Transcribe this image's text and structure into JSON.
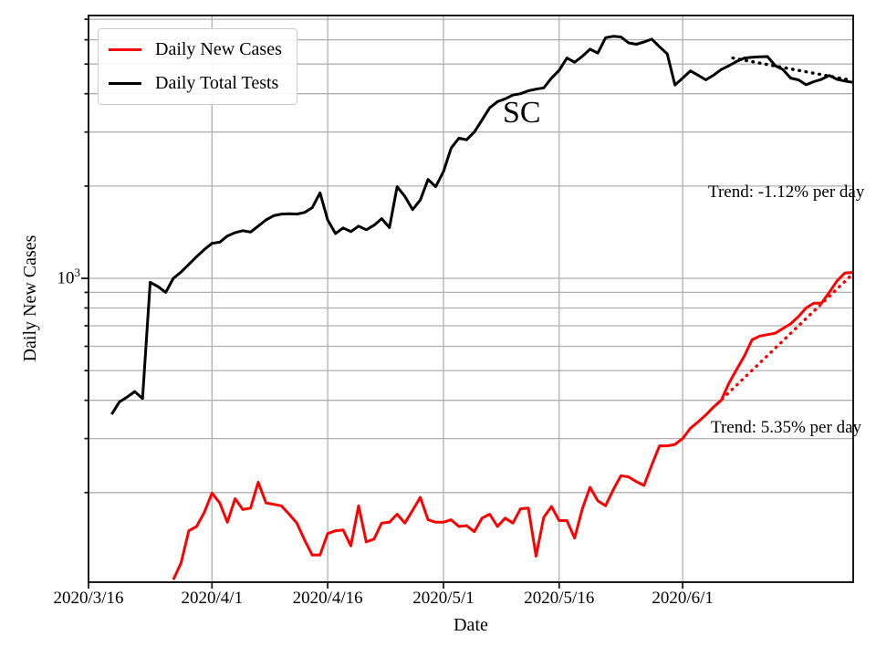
{
  "figure": {
    "window_bg": "#ffffff",
    "grid_color": "#b0b0b0",
    "spine_color": "#1a1a1a"
  },
  "chart_data": {
    "type": "line",
    "title": "SC",
    "state_label": "SC",
    "xlabel": "Date",
    "ylabel": "Daily New Cases",
    "grid": true,
    "legend_position": "upper left",
    "x_axis": {
      "unit": "days since 2020/3/16",
      "range": [
        0,
        99.1
      ],
      "ticks": [
        {
          "day": 0,
          "label": "2020/3/16"
        },
        {
          "day": 16,
          "label": "2020/4/1"
        },
        {
          "day": 31,
          "label": "2020/4/16"
        },
        {
          "day": 46,
          "label": "2020/5/1"
        },
        {
          "day": 61,
          "label": "2020/5/16"
        },
        {
          "day": 77,
          "label": "2020/6/1"
        }
      ]
    },
    "y_axis": {
      "scale": "log",
      "range": [
        102,
        7200
      ],
      "major_tick_value": 1000,
      "major_tick_label_base": "10",
      "major_tick_label_exp": "3",
      "gridline_values": [
        200,
        300,
        400,
        500,
        600,
        700,
        800,
        900,
        1000,
        2000,
        3000,
        4000,
        5000,
        6000,
        7000
      ]
    },
    "trend_labels": {
      "tests": "Trend: -1.12% per day",
      "cases": "Trend: 5.35% per day"
    },
    "series": [
      {
        "name": "Daily New Cases",
        "color": "#ff0000",
        "style": "solid",
        "trend_pct_per_day": 5.35,
        "points": [
          [
            11,
            104
          ],
          [
            12,
            118
          ],
          [
            13,
            150
          ],
          [
            14,
            155
          ],
          [
            15,
            172
          ],
          [
            16,
            199
          ],
          [
            17,
            185
          ],
          [
            18,
            160
          ],
          [
            19,
            191
          ],
          [
            20,
            176
          ],
          [
            21,
            178
          ],
          [
            22,
            216
          ],
          [
            23,
            185
          ],
          [
            24,
            183
          ],
          [
            25,
            181
          ],
          [
            26,
            170
          ],
          [
            27,
            159
          ],
          [
            28,
            140
          ],
          [
            29,
            125
          ],
          [
            30,
            125
          ],
          [
            31,
            147
          ],
          [
            32,
            150
          ],
          [
            33,
            151
          ],
          [
            34,
            134
          ],
          [
            35,
            181
          ],
          [
            36,
            138
          ],
          [
            37,
            141
          ],
          [
            38,
            159
          ],
          [
            39,
            160
          ],
          [
            40,
            170
          ],
          [
            41,
            159
          ],
          [
            42,
            175
          ],
          [
            43,
            193
          ],
          [
            44,
            163
          ],
          [
            45,
            160
          ],
          [
            46,
            160
          ],
          [
            47,
            163
          ],
          [
            48,
            155
          ],
          [
            49,
            156
          ],
          [
            50,
            149
          ],
          [
            51,
            165
          ],
          [
            52,
            170
          ],
          [
            53,
            155
          ],
          [
            54,
            165
          ],
          [
            55,
            159
          ],
          [
            56,
            177
          ],
          [
            57,
            178
          ],
          [
            58,
            124
          ],
          [
            59,
            166
          ],
          [
            60,
            180
          ],
          [
            61,
            162
          ],
          [
            62,
            162
          ],
          [
            63,
            142
          ],
          [
            64,
            177
          ],
          [
            65,
            208
          ],
          [
            66,
            188
          ],
          [
            67,
            181
          ],
          [
            68,
            204
          ],
          [
            69,
            227
          ],
          [
            70,
            225
          ],
          [
            71,
            217
          ],
          [
            72,
            211
          ],
          [
            73,
            246
          ],
          [
            74,
            284
          ],
          [
            75,
            284
          ],
          [
            76,
            287
          ],
          [
            77,
            300
          ],
          [
            78,
            324
          ],
          [
            79,
            340
          ],
          [
            80,
            358
          ],
          [
            81,
            380
          ],
          [
            82,
            400
          ],
          [
            83,
            455
          ],
          [
            84,
            504
          ],
          [
            85,
            558
          ],
          [
            86,
            630
          ],
          [
            87,
            648
          ],
          [
            88,
            655
          ],
          [
            89,
            662
          ],
          [
            90,
            686
          ],
          [
            91,
            710
          ],
          [
            92,
            750
          ],
          [
            93,
            800
          ],
          [
            94,
            830
          ],
          [
            95,
            830
          ],
          [
            96,
            900
          ],
          [
            97,
            980
          ],
          [
            98,
            1040
          ],
          [
            99,
            1045
          ]
        ]
      },
      {
        "name": "Daily Total Tests",
        "color": "#000000",
        "style": "solid",
        "trend_pct_per_day": -1.12,
        "points": [
          [
            3,
            360
          ],
          [
            4,
            395
          ],
          [
            5,
            410
          ],
          [
            6,
            427
          ],
          [
            7,
            405
          ],
          [
            8,
            970
          ],
          [
            9,
            940
          ],
          [
            10,
            900
          ],
          [
            11,
            1000
          ],
          [
            12,
            1048
          ],
          [
            13,
            1110
          ],
          [
            14,
            1176
          ],
          [
            15,
            1240
          ],
          [
            16,
            1300
          ],
          [
            17,
            1312
          ],
          [
            18,
            1374
          ],
          [
            19,
            1410
          ],
          [
            20,
            1430
          ],
          [
            21,
            1415
          ],
          [
            22,
            1480
          ],
          [
            23,
            1550
          ],
          [
            24,
            1600
          ],
          [
            25,
            1620
          ],
          [
            26,
            1625
          ],
          [
            27,
            1620
          ],
          [
            28,
            1640
          ],
          [
            29,
            1700
          ],
          [
            30,
            1900
          ],
          [
            31,
            1550
          ],
          [
            32,
            1400
          ],
          [
            33,
            1460
          ],
          [
            34,
            1420
          ],
          [
            35,
            1480
          ],
          [
            36,
            1440
          ],
          [
            37,
            1490
          ],
          [
            38,
            1565
          ],
          [
            39,
            1464
          ],
          [
            40,
            1990
          ],
          [
            41,
            1850
          ],
          [
            42,
            1675
          ],
          [
            43,
            1800
          ],
          [
            44,
            2100
          ],
          [
            45,
            1990
          ],
          [
            46,
            2230
          ],
          [
            47,
            2660
          ],
          [
            48,
            2865
          ],
          [
            49,
            2830
          ],
          [
            50,
            3000
          ],
          [
            51,
            3286
          ],
          [
            52,
            3600
          ],
          [
            53,
            3770
          ],
          [
            54,
            3850
          ],
          [
            55,
            3960
          ],
          [
            56,
            4000
          ],
          [
            57,
            4090
          ],
          [
            58,
            4140
          ],
          [
            59,
            4180
          ],
          [
            60,
            4500
          ],
          [
            61,
            4770
          ],
          [
            62,
            5230
          ],
          [
            63,
            5070
          ],
          [
            64,
            5300
          ],
          [
            65,
            5590
          ],
          [
            66,
            5430
          ],
          [
            67,
            6090
          ],
          [
            68,
            6160
          ],
          [
            69,
            6130
          ],
          [
            70,
            5860
          ],
          [
            71,
            5800
          ],
          [
            72,
            5900
          ],
          [
            73,
            6030
          ],
          [
            74,
            5690
          ],
          [
            75,
            5400
          ],
          [
            76,
            4270
          ],
          [
            77,
            4500
          ],
          [
            78,
            4750
          ],
          [
            79,
            4600
          ],
          [
            80,
            4440
          ],
          [
            81,
            4600
          ],
          [
            82,
            4800
          ],
          [
            83,
            4940
          ],
          [
            84,
            5100
          ],
          [
            85,
            5230
          ],
          [
            86,
            5260
          ],
          [
            87,
            5280
          ],
          [
            88,
            5290
          ],
          [
            89,
            4940
          ],
          [
            90,
            4800
          ],
          [
            91,
            4500
          ],
          [
            92,
            4440
          ],
          [
            93,
            4280
          ],
          [
            94,
            4380
          ],
          [
            95,
            4460
          ],
          [
            96,
            4590
          ],
          [
            97,
            4460
          ],
          [
            98,
            4400
          ],
          [
            99,
            4360
          ]
        ]
      },
      {
        "name": "Daily New Cases trend fit",
        "color": "#ff0000",
        "style": "dotted",
        "points": [
          [
            81.5,
            390
          ],
          [
            98.8,
            1020
          ]
        ]
      },
      {
        "name": "Daily Total Tests trend fit",
        "color": "#000000",
        "style": "dotted",
        "points": [
          [
            83.5,
            5230
          ],
          [
            98.8,
            4430
          ]
        ]
      }
    ]
  }
}
